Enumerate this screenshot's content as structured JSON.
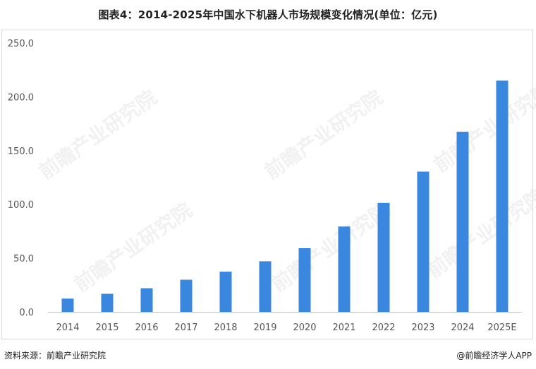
{
  "title": "图表4：2014-2025年中国水下机器人市场规模变化情况(单位：亿元)",
  "footer": {
    "source": "资料来源：前瞻产业研究院",
    "brand": "@前瞻经济学人APP"
  },
  "watermark": "前瞻产业研究院",
  "colors": {
    "bar": "#3a87e0",
    "axis": "#cccccc",
    "tick_text": "#555555"
  },
  "chart_data": {
    "type": "bar",
    "categories": [
      "2014",
      "2015",
      "2016",
      "2017",
      "2018",
      "2019",
      "2020",
      "2021",
      "2022",
      "2023",
      "2024",
      "2025E"
    ],
    "values": [
      12.5,
      17.0,
      22.0,
      30.0,
      37.5,
      47.0,
      59.5,
      79.5,
      101.5,
      130.5,
      167.5,
      215.0
    ],
    "yticks": [
      "0.0",
      "50.0",
      "100.0",
      "150.0",
      "200.0",
      "250.0"
    ],
    "ylim": [
      0,
      250
    ],
    "grid": false,
    "legend": "none"
  }
}
